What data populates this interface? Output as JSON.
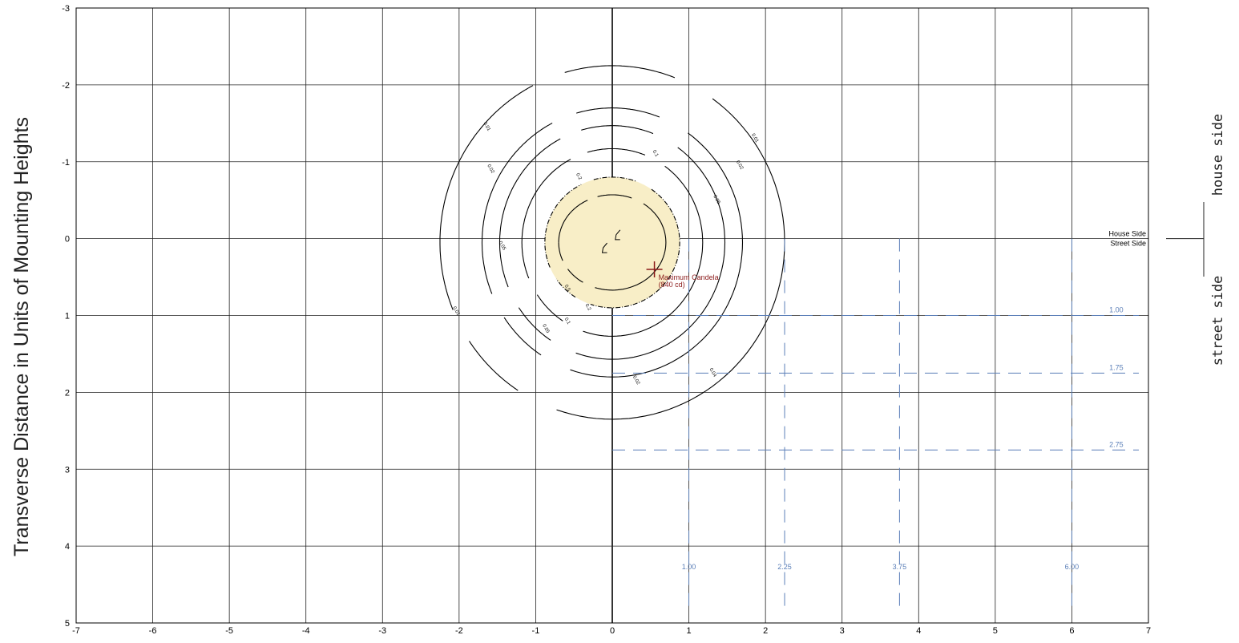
{
  "chart_data": {
    "type": "contour",
    "ylabel": "Transverse Distance in Units of Mounting Heights",
    "xlim": [
      -7,
      7
    ],
    "ylim": [
      -3,
      5
    ],
    "x_ticks": [
      "-7",
      "-6",
      "-5",
      "-4",
      "-3",
      "-2",
      "-1",
      "0",
      "1",
      "2",
      "3",
      "4",
      "5",
      "6",
      "7"
    ],
    "y_ticks": [
      "-3",
      "-2",
      "-1",
      "0",
      "1",
      "2",
      "3",
      "4",
      "5"
    ],
    "grid": true,
    "isofootcandle_contours": [
      {
        "label": "0.5",
        "rx": 0.7,
        "ry": 0.62,
        "cx": 0.0,
        "cy": 0.05
      },
      {
        "label": "0.2",
        "rx": 0.88,
        "ry": 0.85,
        "cx": 0.0,
        "cy": 0.05
      },
      {
        "label": "0.1",
        "rx": 1.18,
        "ry": 1.22,
        "cx": 0.0,
        "cy": 0.05
      },
      {
        "label": "0.05",
        "rx": 1.47,
        "ry": 1.52,
        "cx": 0.0,
        "cy": 0.05
      },
      {
        "label": "0.02",
        "rx": 1.7,
        "ry": 1.75,
        "cx": 0.0,
        "cy": 0.05
      },
      {
        "label": "0.01",
        "rx": 2.25,
        "ry": 2.3,
        "cx": 0.0,
        "cy": 0.05
      }
    ],
    "contour_labels": [
      {
        "text": "0.01",
        "x": -1.65,
        "y": -1.45
      },
      {
        "text": "0.01",
        "x": 1.85,
        "y": -1.3
      },
      {
        "text": "0.02",
        "x": -1.6,
        "y": -0.9
      },
      {
        "text": "0.02",
        "x": 1.65,
        "y": -0.95
      },
      {
        "text": "0.1",
        "x": 0.55,
        "y": -1.1
      },
      {
        "text": "0.05",
        "x": -1.45,
        "y": 0.1
      },
      {
        "text": "0.05",
        "x": 1.35,
        "y": -0.5
      },
      {
        "text": "0.2",
        "x": -0.45,
        "y": -0.8
      },
      {
        "text": "0.5",
        "x": -0.6,
        "y": 0.65
      },
      {
        "text": "0.01",
        "x": -2.05,
        "y": 0.95
      },
      {
        "text": "0.05",
        "x": -0.88,
        "y": 1.18
      },
      {
        "text": "0.1",
        "x": -0.6,
        "y": 1.08
      },
      {
        "text": "0.2",
        "x": -0.33,
        "y": 0.9
      },
      {
        "text": "0.02",
        "x": 0.3,
        "y": 1.85
      },
      {
        "text": "0.04",
        "x": 1.3,
        "y": 1.75
      }
    ],
    "highlight_region": {
      "description": "shaded area inside 0.2 contour",
      "color": "#f8eec7"
    },
    "maximum_candela": {
      "x": 0.55,
      "y": 0.4,
      "label": "Maximum Candela",
      "value_label": "(840 cd)"
    },
    "reference_lines": {
      "horizontal": [
        {
          "y": 1.0,
          "label": "1.00"
        },
        {
          "y": 1.75,
          "label": "1.75"
        },
        {
          "y": 2.75,
          "label": "2.75"
        }
      ],
      "vertical": [
        {
          "x": 1.0,
          "label": "1.00"
        },
        {
          "x": 2.25,
          "label": "2.25"
        },
        {
          "x": 3.75,
          "label": "3.75"
        },
        {
          "x": 6.0,
          "label": "6.00"
        }
      ],
      "color": "#5b7fb8"
    },
    "side_labels": {
      "house_small": "House Side",
      "street_small": "Street Side",
      "house_large": "house side",
      "street_large": "street side"
    }
  }
}
